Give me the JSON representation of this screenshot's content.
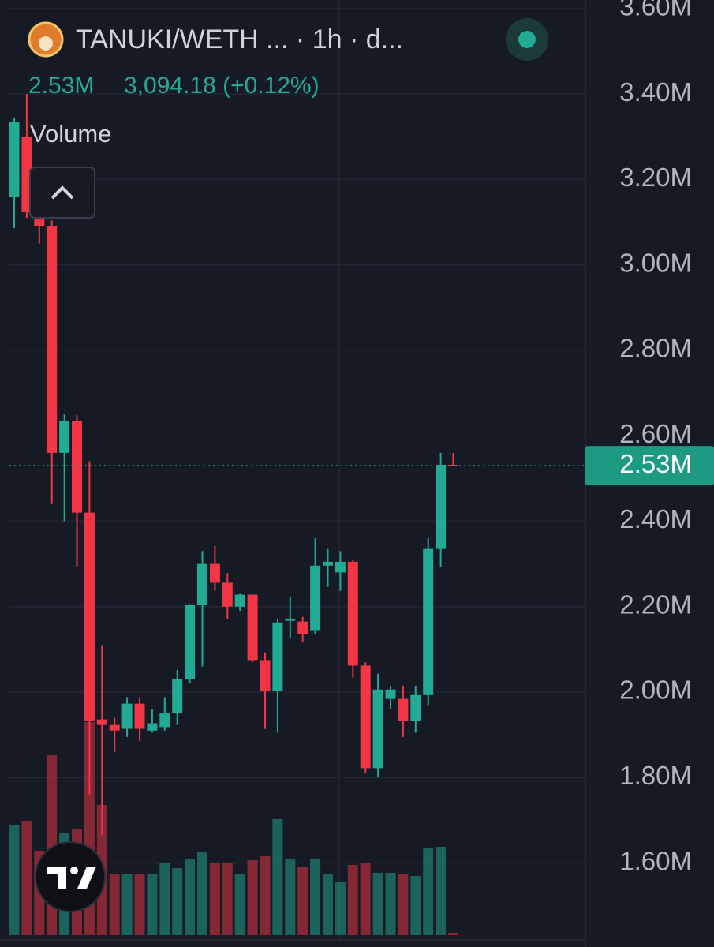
{
  "chart_data": {
    "type": "candlestick",
    "title": "TANUKI/WETH ... · 1h · d...",
    "volume_label": "2.53M",
    "price_label": "3,094.18 (+0.12%)",
    "volume_title": "Volume",
    "up_color": "#22ab94",
    "down_color": "#f23645",
    "open": [
      3.16,
      3.3,
      3.114,
      3.09,
      2.56,
      2.634,
      2.42,
      1.936,
      1.923,
      1.914,
      1.973,
      1.91,
      1.918,
      1.95,
      2.03,
      2.204,
      2.3,
      2.256,
      2.2,
      2.228,
      2.075,
      2.002,
      2.167,
      2.165,
      2.145,
      2.296,
      2.28,
      2.305,
      2.062,
      1.822,
      1.984,
      1.984,
      1.932,
      1.993,
      2.335,
      2.532
    ],
    "high": [
      3.345,
      3.4,
      3.12,
      3.104,
      2.652,
      2.648,
      2.54,
      2.11,
      1.94,
      1.988,
      1.988,
      1.96,
      1.988,
      2.052,
      2.206,
      2.33,
      2.342,
      2.278,
      2.23,
      2.228,
      2.093,
      2.172,
      2.224,
      2.176,
      2.36,
      2.335,
      2.33,
      2.31,
      2.07,
      2.043,
      2.015,
      2.015,
      2.015,
      2.36,
      2.56,
      2.56
    ],
    "low": [
      3.086,
      3.11,
      3.05,
      2.44,
      2.4,
      2.292,
      1.76,
      1.665,
      1.86,
      1.895,
      1.886,
      1.905,
      1.91,
      1.923,
      2.02,
      2.06,
      2.237,
      2.17,
      2.19,
      2.07,
      1.914,
      1.905,
      2.126,
      2.117,
      2.135,
      2.246,
      2.237,
      2.034,
      1.81,
      1.8,
      1.96,
      1.895,
      1.905,
      1.97,
      2.292,
      2.53
    ],
    "close": [
      3.335,
      3.123,
      3.09,
      2.56,
      2.634,
      2.42,
      1.932,
      1.923,
      1.91,
      1.973,
      1.914,
      1.927,
      1.95,
      2.03,
      2.204,
      2.3,
      2.256,
      2.2,
      2.228,
      2.075,
      2.002,
      2.163,
      2.172,
      2.135,
      2.296,
      2.305,
      2.305,
      2.062,
      1.822,
      2.006,
      2.006,
      1.932,
      1.993,
      2.335,
      2.532,
      2.53
    ],
    "volume": [
      140,
      145,
      107,
      228,
      130,
      135,
      270,
      165,
      77,
      77,
      77,
      77,
      92,
      85,
      97,
      105,
      92,
      92,
      77,
      95,
      100,
      147,
      97,
      87,
      97,
      77,
      67,
      89,
      92,
      79,
      79,
      77,
      75,
      110,
      112,
      3
    ],
    "ylim": [
      1.42,
      3.62
    ],
    "yticks": [
      {
        "value": 1.6,
        "label": "1.60M"
      },
      {
        "value": 1.8,
        "label": "1.80M"
      },
      {
        "value": 2.0,
        "label": "2.00M"
      },
      {
        "value": 2.2,
        "label": "2.20M"
      },
      {
        "value": 2.4,
        "label": "2.40M"
      },
      {
        "value": 2.6,
        "label": "2.60M"
      },
      {
        "value": 2.8,
        "label": "2.80M"
      },
      {
        "value": 3.0,
        "label": "3.00M"
      },
      {
        "value": 3.2,
        "label": "3.20M"
      },
      {
        "value": 3.4,
        "label": "3.40M"
      },
      {
        "value": 3.6,
        "label": "3.60M"
      }
    ],
    "price_line": {
      "value": 2.53,
      "label": "2.53M"
    },
    "grid": true
  }
}
